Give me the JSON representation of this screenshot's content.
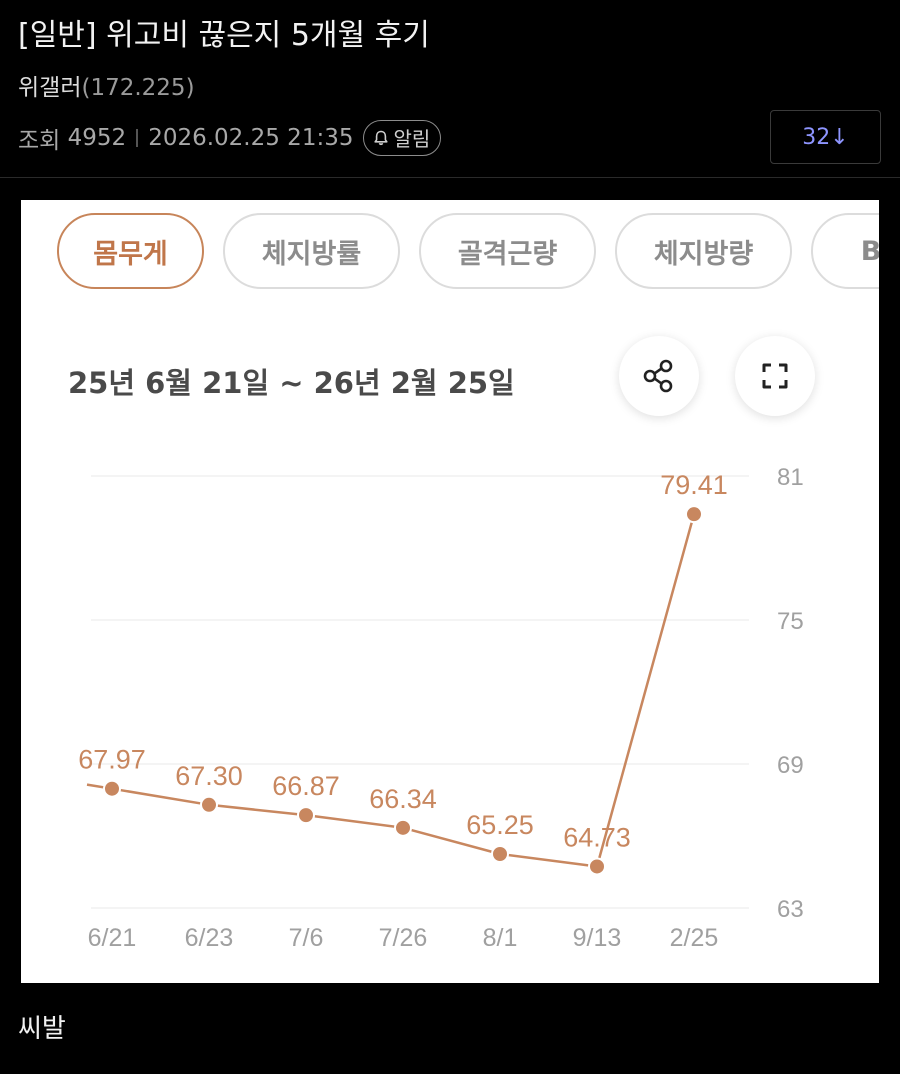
{
  "post": {
    "title": "[일반] 위고비 끊은지 5개월 후기",
    "author": "위갤러",
    "author_ip": "(172.225)",
    "views_label": "조회",
    "views": "4952",
    "datetime": "2026.02.25 21:35",
    "alarm_label": "알림",
    "comment_count": "32↓",
    "body_text": "씨발"
  },
  "app": {
    "tabs": [
      {
        "label": "몸무게",
        "active": true
      },
      {
        "label": "체지방률",
        "active": false
      },
      {
        "label": "골격근량",
        "active": false
      },
      {
        "label": "체지방량",
        "active": false
      },
      {
        "label": "B",
        "active": false
      }
    ],
    "date_range": "25년 6월 21일 ~ 26년 2월 25일",
    "share_icon": "share-icon",
    "expand_icon": "fullscreen-icon"
  },
  "colors": {
    "accent": "#c8875f",
    "text_accent": "#c0764a",
    "comment_count": "#8e95ff"
  },
  "chart_data": {
    "type": "line",
    "categories": [
      "6/21",
      "6/23",
      "7/6",
      "7/26",
      "8/1",
      "9/13",
      "2/25"
    ],
    "values": [
      67.97,
      67.3,
      66.87,
      66.34,
      65.25,
      64.73,
      79.41
    ],
    "value_labels": [
      "67.97",
      "67.30",
      "66.87",
      "66.34",
      "65.25",
      "64.73",
      "79.41"
    ],
    "y_ticks": [
      "81",
      "75",
      "69",
      "63"
    ],
    "ylim": [
      63,
      81
    ],
    "y_axis_side": "right",
    "grid": true,
    "title": "",
    "xlabel": "",
    "ylabel": ""
  }
}
